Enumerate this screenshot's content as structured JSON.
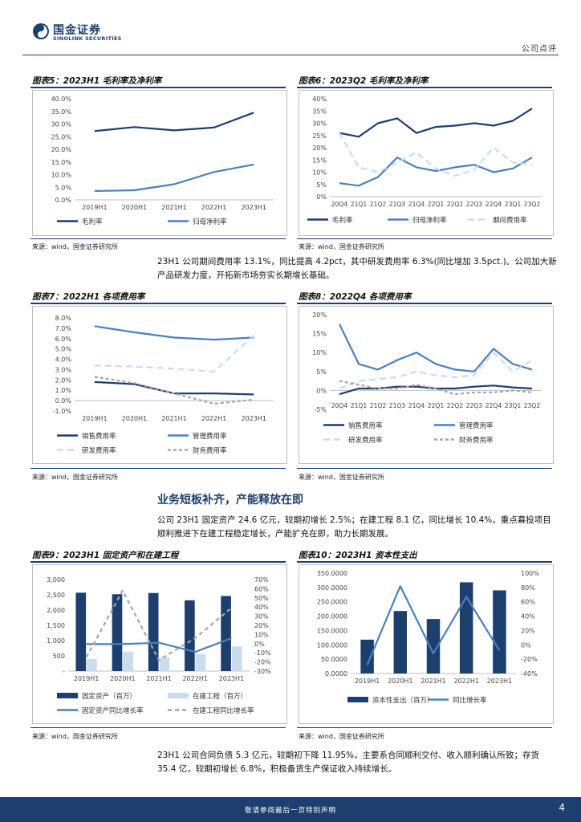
{
  "header": {
    "brand_cn": "国金证券",
    "brand_en": "SINOLINK SECURITIES",
    "report_type": "公司点评",
    "logo": "sinolink-logo-icon"
  },
  "colors": {
    "navy": "#1d3f6e",
    "blue": "#4a7fc0",
    "lightblue": "#c9dcf0",
    "gray": "#a6a6a6"
  },
  "figures": {
    "fig5": {
      "title": "图表5：2023H1 毛利率及净利率",
      "source": "来源：wind，国金证券研究所"
    },
    "fig6": {
      "title": "图表6：2023Q2 毛利率及净利率",
      "source": "来源：wind，国金证券研究所"
    },
    "fig7": {
      "title": "图表7：2022H1 各项费用率",
      "source": "来源：wind，国金证券研究所"
    },
    "fig8": {
      "title": "图表8：2022Q4 各项费用率",
      "source": "来源：wind，国金证券研究所"
    },
    "fig9": {
      "title": "图表9：2023H1 固定资产和在建工程",
      "source": "来源：wind，国金证券研究所"
    },
    "fig10": {
      "title": "图表10：2023H1 资本性支出",
      "source": "来源：wind，国金证券研究所"
    }
  },
  "paragraphs": {
    "p1": "23H1 公司期间费用率 13.1%，同比提高 4.2pct，其中研发费用率 6.3%(同比增加 3.5pct.)。公司加大新产品研发力度，开拓新市场夯实长期增长基础。",
    "p2": "公司 23H1 固定资产 24.6 亿元，较期初增长 2.5%；在建工程 8.1 亿，同比增长 10.4%，重点募投项目顺利推进下在建工程稳定增长，产能扩充在即，助力长期发展。",
    "p3": "23H1 公司合同负债 5.3 亿元，较期初下降 11.95%，主要系合同顺利交付、收入顺利确认所致；存货 35.4 亿，较期初增长 6.8%，积极备货生产保证收入持续增长。"
  },
  "section": {
    "heading": "业务短板补齐，产能释放在即"
  },
  "footer": {
    "disclaimer": "敬请参阅最后一页特别声明",
    "page": "4"
  },
  "chart_data": [
    {
      "id": "fig5",
      "type": "line",
      "categories": [
        "2019H1",
        "2020H1",
        "2021H1",
        "2022H1",
        "2023H1"
      ],
      "ylim": [
        0,
        40
      ],
      "ytick_labels": [
        "0.0%",
        "5.0%",
        "10.0%",
        "15.0%",
        "20.0%",
        "25.0%",
        "30.0%",
        "35.0%",
        "40.0%"
      ],
      "series": [
        {
          "name": "毛利率",
          "color": "#1d3f6e",
          "dash": "",
          "values": [
            27.2,
            28.8,
            27.5,
            28.6,
            34.5
          ]
        },
        {
          "name": "归母净利率",
          "color": "#4a7fc0",
          "dash": "",
          "values": [
            3.5,
            3.8,
            6.2,
            11.0,
            14.0
          ]
        }
      ]
    },
    {
      "id": "fig6",
      "type": "line",
      "categories": [
        "20Q4",
        "21Q1",
        "21Q2",
        "21Q3",
        "21Q4",
        "22Q1",
        "22Q2",
        "22Q3",
        "22Q4",
        "23Q1",
        "23Q2"
      ],
      "ylim": [
        0,
        40
      ],
      "ytick_labels": [
        "0%",
        "5%",
        "10%",
        "15%",
        "20%",
        "25%",
        "30%",
        "35%",
        "40%"
      ],
      "series": [
        {
          "name": "毛利率",
          "color": "#1d3f6e",
          "dash": "",
          "values": [
            26,
            24.5,
            30,
            32,
            26,
            28.5,
            29,
            30,
            29,
            31,
            36
          ]
        },
        {
          "name": "归母净利率",
          "color": "#4a7fc0",
          "dash": "",
          "values": [
            5.5,
            4.5,
            8,
            16,
            12,
            10.5,
            12,
            13,
            10,
            11.5,
            16
          ]
        },
        {
          "name": "期间费用率",
          "color": "#c9dcf0",
          "dash": "8,5",
          "values": [
            26,
            12,
            10,
            14,
            18,
            11.5,
            8.5,
            11,
            20,
            14,
            13
          ]
        }
      ]
    },
    {
      "id": "fig7",
      "type": "line",
      "categories": [
        "2019H1",
        "2020H1",
        "2021H1",
        "2022H1",
        "2023H1"
      ],
      "ylim": [
        -1,
        8
      ],
      "ytick_labels": [
        "-1.0%",
        "0.0%",
        "1.0%",
        "2.0%",
        "3.0%",
        "4.0%",
        "5.0%",
        "6.0%",
        "7.0%",
        "8.0%"
      ],
      "series": [
        {
          "name": "销售费用率",
          "color": "#1d3f6e",
          "dash": "",
          "values": [
            1.8,
            1.6,
            0.7,
            0.7,
            0.6
          ]
        },
        {
          "name": "管理费用率",
          "color": "#4a7fc0",
          "dash": "",
          "values": [
            7.2,
            6.6,
            6.1,
            5.9,
            6.1
          ]
        },
        {
          "name": "研发费用率",
          "color": "#c9dcf0",
          "dash": "8,5",
          "values": [
            3.4,
            3.3,
            3.1,
            2.8,
            6.3
          ]
        },
        {
          "name": "财务费用率",
          "color": "#a6a6a6",
          "dash": "4,3",
          "values": [
            2.3,
            1.7,
            0.7,
            -0.3,
            0.1
          ]
        }
      ]
    },
    {
      "id": "fig8",
      "type": "line",
      "categories": [
        "20Q4",
        "21Q1",
        "21Q2",
        "21Q3",
        "21Q4",
        "22Q1",
        "22Q2",
        "22Q3",
        "22Q4",
        "23Q1",
        "23Q2"
      ],
      "ylim": [
        -5,
        20
      ],
      "ytick_labels": [
        "-5%",
        "0%",
        "5%",
        "10%",
        "15%",
        "20%"
      ],
      "series": [
        {
          "name": "销售费用率",
          "color": "#1d3f6e",
          "dash": "",
          "values": [
            -1,
            0.5,
            0.5,
            1,
            1,
            0.5,
            0.5,
            1,
            1.3,
            0.8,
            0.5
          ]
        },
        {
          "name": "管理费用率",
          "color": "#4a7fc0",
          "dash": "",
          "values": [
            17.5,
            7,
            5.5,
            8,
            10,
            7,
            5.5,
            5,
            11,
            7,
            5.5
          ]
        },
        {
          "name": "研发费用率",
          "color": "#c9dcf0",
          "dash": "8,5",
          "values": [
            0.5,
            2.5,
            3,
            3.5,
            5,
            4,
            3.5,
            4,
            10,
            5,
            8
          ]
        },
        {
          "name": "财务费用率",
          "color": "#a6a6a6",
          "dash": "4,3",
          "values": [
            2.5,
            1.5,
            0.5,
            0.5,
            1.5,
            0.5,
            -1,
            -0.5,
            -0.5,
            0,
            -0.5
          ]
        }
      ]
    },
    {
      "id": "fig9",
      "type": "bar",
      "categories": [
        "2019H1",
        "2020H1",
        "2021H1",
        "2022H1",
        "2023H1"
      ],
      "ylim": [
        0,
        3000
      ],
      "ytick_labels": [
        "-",
        "500",
        "1,000",
        "1,500",
        "2,000",
        "2,500",
        "3,000"
      ],
      "y2lim": [
        -30,
        70
      ],
      "y2tick_labels": [
        "-30%",
        "-20%",
        "-10%",
        "0%",
        "10%",
        "20%",
        "30%",
        "40%",
        "50%",
        "60%",
        "70%"
      ],
      "bars": [
        {
          "name": "固定资产（百万）",
          "color": "#1d3f6e",
          "values": [
            2570,
            2520,
            2560,
            2320,
            2460
          ]
        },
        {
          "name": "在建工程（百万）",
          "color": "#c9dcf0",
          "values": [
            400,
            640,
            450,
            560,
            810
          ]
        }
      ],
      "lines": [
        {
          "name": "固定资产同比增长率",
          "color": "#4a7fc0",
          "dash": "",
          "values": [
            -0.5,
            -0.5,
            1,
            -9,
            6
          ]
        },
        {
          "name": "在建工程同比增长率",
          "color": "#a6a6a6",
          "dash": "5,4",
          "values": [
            -15,
            58,
            -18,
            6,
            39
          ]
        }
      ]
    },
    {
      "id": "fig10",
      "type": "bar",
      "categories": [
        "2019H1",
        "2020H1",
        "2021H1",
        "2022H1",
        "2023H1"
      ],
      "ylim": [
        0,
        350
      ],
      "ytick_labels": [
        "0.0000",
        "50.0000",
        "100.0000",
        "150.0000",
        "200.0000",
        "250.0000",
        "300.0000",
        "350.0000"
      ],
      "y2lim": [
        -40,
        100
      ],
      "y2tick_labels": [
        "-40%",
        "-20%",
        "0%",
        "20%",
        "40%",
        "60%",
        "80%",
        "100%"
      ],
      "bars": [
        {
          "name": "资本性支出（百万）",
          "color": "#1d3f6e",
          "values": [
            118,
            218,
            190,
            318,
            290
          ]
        },
        {
          "name": "",
          "color": "",
          "values": []
        }
      ],
      "lines": [
        {
          "name": "同比增长率",
          "color": "#4a7fc0",
          "dash": "",
          "values": [
            -28,
            82,
            -12,
            67,
            -8
          ]
        }
      ]
    }
  ]
}
